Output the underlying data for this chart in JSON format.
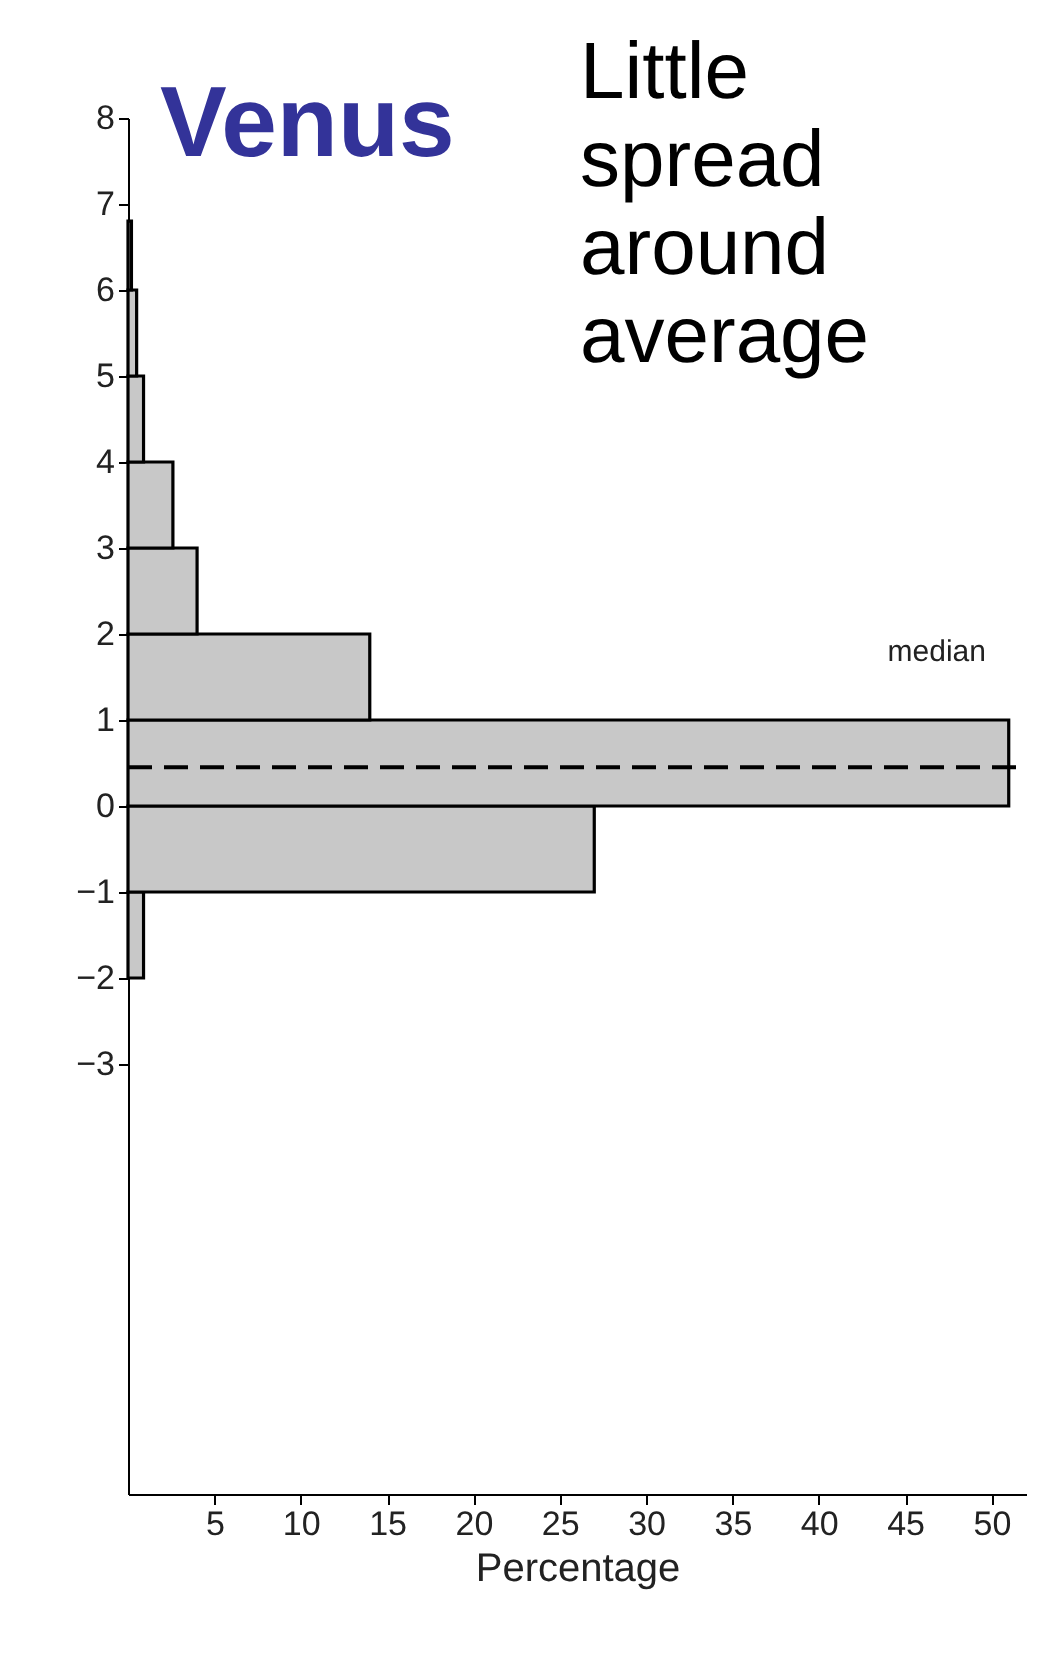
{
  "chart_data": {
    "type": "histogram",
    "orientation": "horizontal",
    "title": "Venus",
    "annotations": [
      "Little spread around average"
    ],
    "xlabel": "Percentage",
    "bins": [
      -2,
      -1,
      0,
      1,
      2,
      3,
      4,
      5,
      6,
      6.8
    ],
    "values": [
      0.9,
      27,
      51,
      14,
      4,
      2.6,
      0.9,
      0.5,
      0.2
    ],
    "color": "#c8c8c8",
    "xlim": [
      0,
      52
    ],
    "xticks": [
      5,
      10,
      15,
      20,
      25,
      30,
      35,
      40,
      45,
      50
    ],
    "ylim": [
      -8,
      8
    ],
    "yticks": [
      -3,
      -2,
      -1,
      0,
      1,
      2,
      3,
      4,
      5,
      6,
      7,
      8
    ],
    "ref_lines": [
      {
        "axis": "y",
        "value": 0.45,
        "label": "median",
        "line_style": "dashed"
      }
    ],
    "grid": false
  }
}
